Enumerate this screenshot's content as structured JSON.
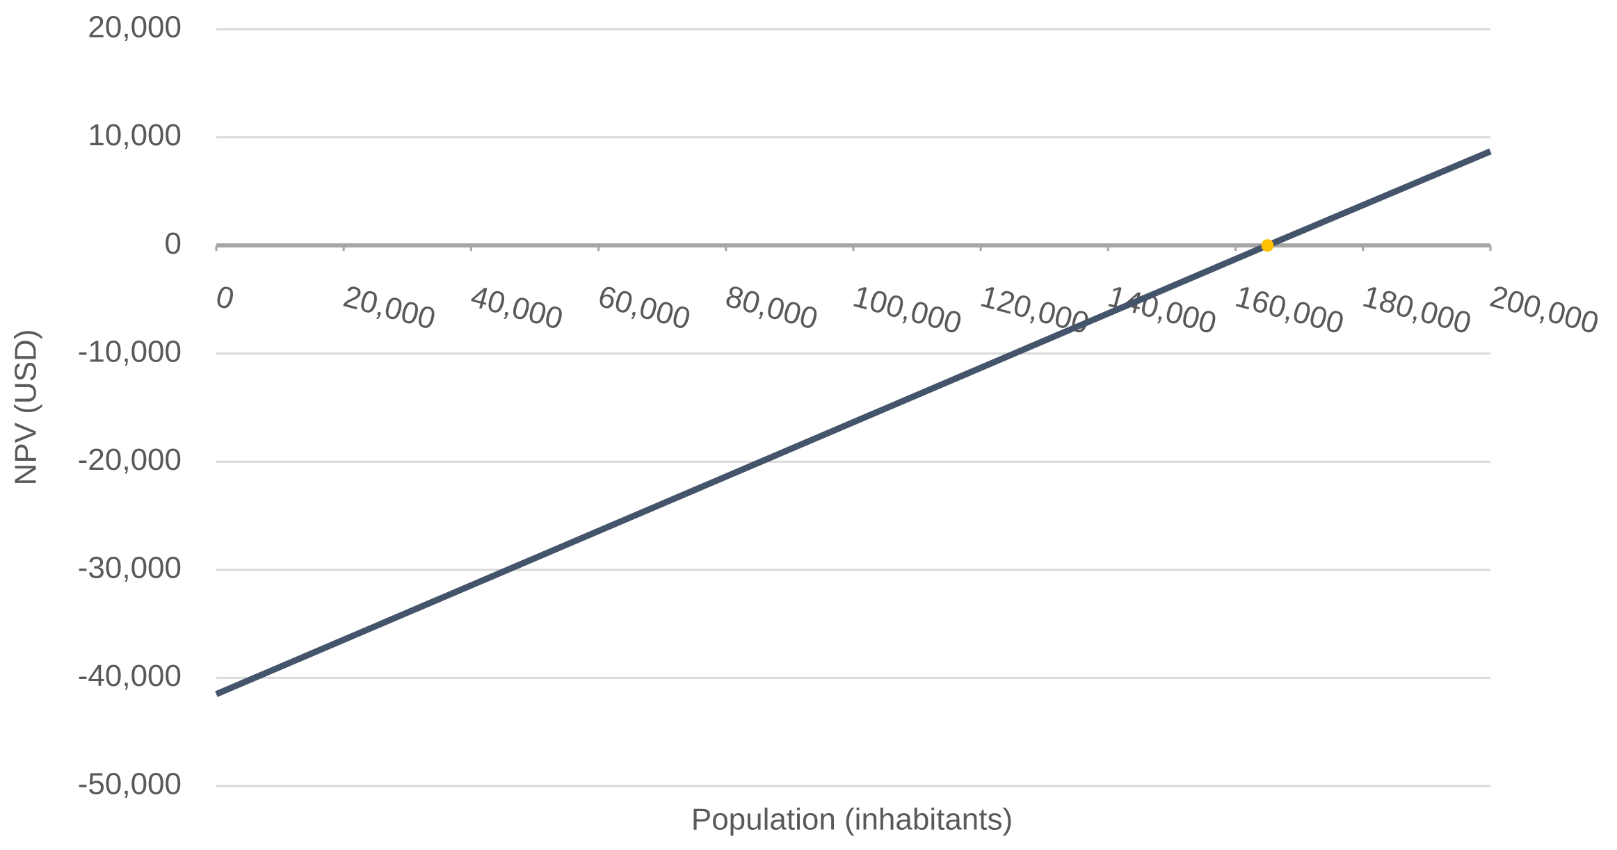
{
  "chart_data": {
    "type": "line",
    "x": [
      0,
      165000,
      200000
    ],
    "series": [
      {
        "color": "#44546a",
        "values": [
          -41500,
          0,
          8700
        ],
        "style": "line"
      },
      {
        "color": "#ffc000",
        "values": [
          null,
          0,
          null
        ],
        "style": "markers"
      }
    ],
    "xlabel": "Population (inhabitants)",
    "ylabel": "NPV (USD)",
    "xlim": [
      0,
      200000
    ],
    "xticks": [
      0,
      {
        "value": 20000,
        "label": "20,000"
      },
      {
        "value": 40000,
        "label": "40,000"
      },
      {
        "value": 60000,
        "label": "60,000"
      },
      {
        "value": 80000,
        "label": "80,000"
      },
      {
        "value": 100000,
        "label": "100,000"
      },
      {
        "value": 120000,
        "label": "120,000"
      },
      {
        "value": 140000,
        "label": "140,000"
      },
      {
        "value": 160000,
        "label": "160,000"
      },
      {
        "value": 180000,
        "label": "180,000"
      },
      {
        "value": 200000,
        "label": "200,000"
      }
    ],
    "ylim": [
      -50000,
      20000
    ],
    "yticks": [
      {
        "value": 20000,
        "label": "20,000"
      },
      {
        "value": 10000,
        "label": "10,000"
      },
      0,
      {
        "value": -10000,
        "label": "-10,000"
      },
      {
        "value": -20000,
        "label": "-20,000"
      },
      {
        "value": -30000,
        "label": "-30,000"
      },
      {
        "value": -40000,
        "label": "-40,000"
      },
      {
        "value": -50000,
        "label": "-50,000"
      }
    ],
    "grid": true
  }
}
